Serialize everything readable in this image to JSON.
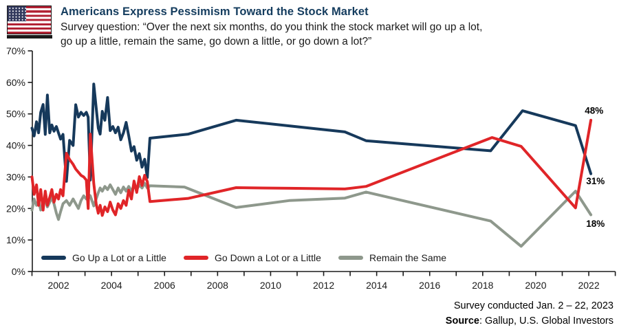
{
  "header": {
    "title": "Americans Express Pessimism Toward the Stock Market",
    "subtitle_line1": "Survey question: “Over the next six months, do you think the stock market will go up a lot,",
    "subtitle_line2": "go up a little, remain the same, go down a little, or go down a lot?”",
    "flag_icon": "us-flag-icon"
  },
  "footer": {
    "survey_note": "Survey conducted Jan. 2 – 22, 2023",
    "source_label": "Source",
    "source_text": ": Gallup, U.S. Global Investors"
  },
  "colors": {
    "navy": "#16395B",
    "red": "#E02528",
    "gray": "#8E988C",
    "axis": "#1a1a1a",
    "title": "#143C5E",
    "text": "#1a1a1a",
    "annotation": "#000000"
  },
  "chart_data": {
    "type": "line",
    "title": "Americans Express Pessimism Toward the Stock Market",
    "xlabel": "",
    "ylabel": "",
    "ylim": [
      0,
      70
    ],
    "xlim": [
      2001,
      2023
    ],
    "grid": false,
    "legend_position": "bottom-left-inside",
    "y_ticks": [
      0,
      10,
      20,
      30,
      40,
      50,
      60,
      70
    ],
    "y_tick_suffix": "%",
    "x_tick_years": [
      2001,
      2002,
      2003,
      2004,
      2005,
      2006,
      2007,
      2008,
      2009,
      2010,
      2011,
      2012,
      2013,
      2014,
      2015,
      2016,
      2017,
      2018,
      2019,
      2020,
      2021,
      2022,
      2023
    ],
    "x_label_years": [
      2002,
      2004,
      2006,
      2008,
      2010,
      2012,
      2014,
      2016,
      2018,
      2020,
      2022
    ],
    "series": [
      {
        "name": "Go Up a Lot or a Little",
        "color": "#16395B",
        "end_value_label": "31%",
        "points": [
          [
            2001.0,
            45.5
          ],
          [
            2001.08,
            43
          ],
          [
            2001.17,
            47.5
          ],
          [
            2001.25,
            44
          ],
          [
            2001.33,
            50.5
          ],
          [
            2001.42,
            53
          ],
          [
            2001.5,
            43.5
          ],
          [
            2001.58,
            56
          ],
          [
            2001.67,
            44
          ],
          [
            2001.75,
            46.5
          ],
          [
            2001.83,
            44.5
          ],
          [
            2001.92,
            46
          ],
          [
            2002.0,
            44
          ],
          [
            2002.08,
            42
          ],
          [
            2002.17,
            43.5
          ],
          [
            2002.3,
            28.6
          ],
          [
            2002.42,
            41.6
          ],
          [
            2002.55,
            40
          ],
          [
            2002.65,
            52.9
          ],
          [
            2002.75,
            49
          ],
          [
            2002.85,
            50.5
          ],
          [
            2002.95,
            49.5
          ],
          [
            2003.05,
            50.5
          ],
          [
            2003.12,
            49
          ],
          [
            2003.2,
            29
          ],
          [
            2003.33,
            59.5
          ],
          [
            2003.42,
            52
          ],
          [
            2003.5,
            45.5
          ],
          [
            2003.57,
            43.6
          ],
          [
            2003.65,
            50.8
          ],
          [
            2003.75,
            48
          ],
          [
            2003.85,
            55.2
          ],
          [
            2003.95,
            44.7
          ],
          [
            2004.05,
            46
          ],
          [
            2004.15,
            44
          ],
          [
            2004.25,
            45.8
          ],
          [
            2004.35,
            41.8
          ],
          [
            2004.45,
            44
          ],
          [
            2004.55,
            47.3
          ],
          [
            2004.65,
            43
          ],
          [
            2004.75,
            38.2
          ],
          [
            2004.85,
            39.6
          ],
          [
            2004.95,
            35.3
          ],
          [
            2005.05,
            37.4
          ],
          [
            2005.15,
            33.1
          ],
          [
            2005.25,
            35.6
          ],
          [
            2005.35,
            29.8
          ],
          [
            2005.45,
            42.3
          ],
          [
            2006.9,
            43.6
          ],
          [
            2008.7,
            48
          ],
          [
            2010.7,
            46.2
          ],
          [
            2012.8,
            44.3
          ],
          [
            2013.6,
            41.5
          ],
          [
            2018.3,
            38.3
          ],
          [
            2019.5,
            51
          ],
          [
            2021.5,
            46.3
          ],
          [
            2022.08,
            31
          ]
        ]
      },
      {
        "name": "Go Down a Lot or a Little",
        "color": "#E02528",
        "end_value_label": "48%",
        "points": [
          [
            2001.0,
            30
          ],
          [
            2001.08,
            24.5
          ],
          [
            2001.17,
            27.5
          ],
          [
            2001.25,
            21
          ],
          [
            2001.33,
            26
          ],
          [
            2001.42,
            19.5
          ],
          [
            2001.5,
            25.5
          ],
          [
            2001.58,
            21
          ],
          [
            2001.67,
            23.5
          ],
          [
            2001.75,
            26
          ],
          [
            2001.83,
            22
          ],
          [
            2001.92,
            24.5
          ],
          [
            2002.0,
            23
          ],
          [
            2002.08,
            26
          ],
          [
            2002.17,
            24
          ],
          [
            2002.3,
            37.5
          ],
          [
            2002.42,
            35.5
          ],
          [
            2002.55,
            34
          ],
          [
            2002.65,
            32.5
          ],
          [
            2002.75,
            31.5
          ],
          [
            2002.85,
            30.5
          ],
          [
            2002.95,
            30
          ],
          [
            2003.05,
            29
          ],
          [
            2003.12,
            20
          ],
          [
            2003.2,
            43.6
          ],
          [
            2003.33,
            28
          ],
          [
            2003.42,
            21.5
          ],
          [
            2003.5,
            18.5
          ],
          [
            2003.57,
            21
          ],
          [
            2003.65,
            17.8
          ],
          [
            2003.75,
            20.5
          ],
          [
            2003.85,
            19
          ],
          [
            2003.95,
            22
          ],
          [
            2004.05,
            19.5
          ],
          [
            2004.15,
            18
          ],
          [
            2004.25,
            21.5
          ],
          [
            2004.35,
            20
          ],
          [
            2004.45,
            22.5
          ],
          [
            2004.55,
            21
          ],
          [
            2004.65,
            25.8
          ],
          [
            2004.75,
            23
          ],
          [
            2004.85,
            28.7
          ],
          [
            2004.95,
            25.1
          ],
          [
            2005.05,
            30.1
          ],
          [
            2005.15,
            27.3
          ],
          [
            2005.25,
            30.5
          ],
          [
            2005.35,
            28.5
          ],
          [
            2005.45,
            22.2
          ],
          [
            2006.9,
            23.2
          ],
          [
            2008.7,
            26.6
          ],
          [
            2010.7,
            26.4
          ],
          [
            2012.8,
            26.2
          ],
          [
            2013.6,
            27
          ],
          [
            2018.35,
            42.5
          ],
          [
            2019.45,
            39.7
          ],
          [
            2021.5,
            20.2
          ],
          [
            2022.08,
            48
          ]
        ]
      },
      {
        "name": "Remain the Same",
        "color": "#8E988C",
        "end_value_label": "18%",
        "points": [
          [
            2001.0,
            19.5
          ],
          [
            2001.08,
            23
          ],
          [
            2001.17,
            21
          ],
          [
            2001.25,
            22.5
          ],
          [
            2001.33,
            19.5
          ],
          [
            2001.42,
            21.5
          ],
          [
            2001.5,
            23
          ],
          [
            2001.58,
            20.5
          ],
          [
            2001.67,
            22
          ],
          [
            2001.75,
            23.5
          ],
          [
            2001.83,
            21.5
          ],
          [
            2001.92,
            18.5
          ],
          [
            2002.0,
            16.5
          ],
          [
            2002.08,
            19
          ],
          [
            2002.17,
            21.5
          ],
          [
            2002.3,
            22.5
          ],
          [
            2002.42,
            21
          ],
          [
            2002.55,
            23
          ],
          [
            2002.65,
            21.5
          ],
          [
            2002.75,
            20
          ],
          [
            2002.85,
            22.5
          ],
          [
            2002.95,
            24
          ],
          [
            2003.05,
            23
          ],
          [
            2003.12,
            24.5
          ],
          [
            2003.2,
            24
          ],
          [
            2003.33,
            20.8
          ],
          [
            2003.42,
            23
          ],
          [
            2003.5,
            25
          ],
          [
            2003.57,
            26.5
          ],
          [
            2003.65,
            25.5
          ],
          [
            2003.75,
            27
          ],
          [
            2003.85,
            26
          ],
          [
            2003.95,
            27.5
          ],
          [
            2004.05,
            26
          ],
          [
            2004.15,
            24.5
          ],
          [
            2004.25,
            26.5
          ],
          [
            2004.35,
            25
          ],
          [
            2004.45,
            26.8
          ],
          [
            2004.55,
            25.5
          ],
          [
            2004.65,
            27
          ],
          [
            2004.75,
            25.5
          ],
          [
            2004.85,
            27.3
          ],
          [
            2004.95,
            26
          ],
          [
            2005.05,
            27.5
          ],
          [
            2005.15,
            26.5
          ],
          [
            2005.25,
            28
          ],
          [
            2005.35,
            26.5
          ],
          [
            2005.45,
            27.2
          ],
          [
            2006.75,
            26.8
          ],
          [
            2008.7,
            20.3
          ],
          [
            2010.7,
            22.5
          ],
          [
            2012.8,
            23.3
          ],
          [
            2013.6,
            25.2
          ],
          [
            2018.3,
            16
          ],
          [
            2019.45,
            8
          ],
          [
            2021.5,
            25.5
          ],
          [
            2022.08,
            18
          ]
        ]
      }
    ],
    "annotations": [
      {
        "text": "48%",
        "year": 2021.85,
        "pct": 50.0,
        "series": "Go Down a Lot or a Little"
      },
      {
        "text": "31%",
        "year": 2021.9,
        "pct": 27.7,
        "series": "Go Up a Lot or a Little"
      },
      {
        "text": "18%",
        "year": 2021.9,
        "pct": 14.2,
        "series": "Remain the Same"
      }
    ]
  }
}
